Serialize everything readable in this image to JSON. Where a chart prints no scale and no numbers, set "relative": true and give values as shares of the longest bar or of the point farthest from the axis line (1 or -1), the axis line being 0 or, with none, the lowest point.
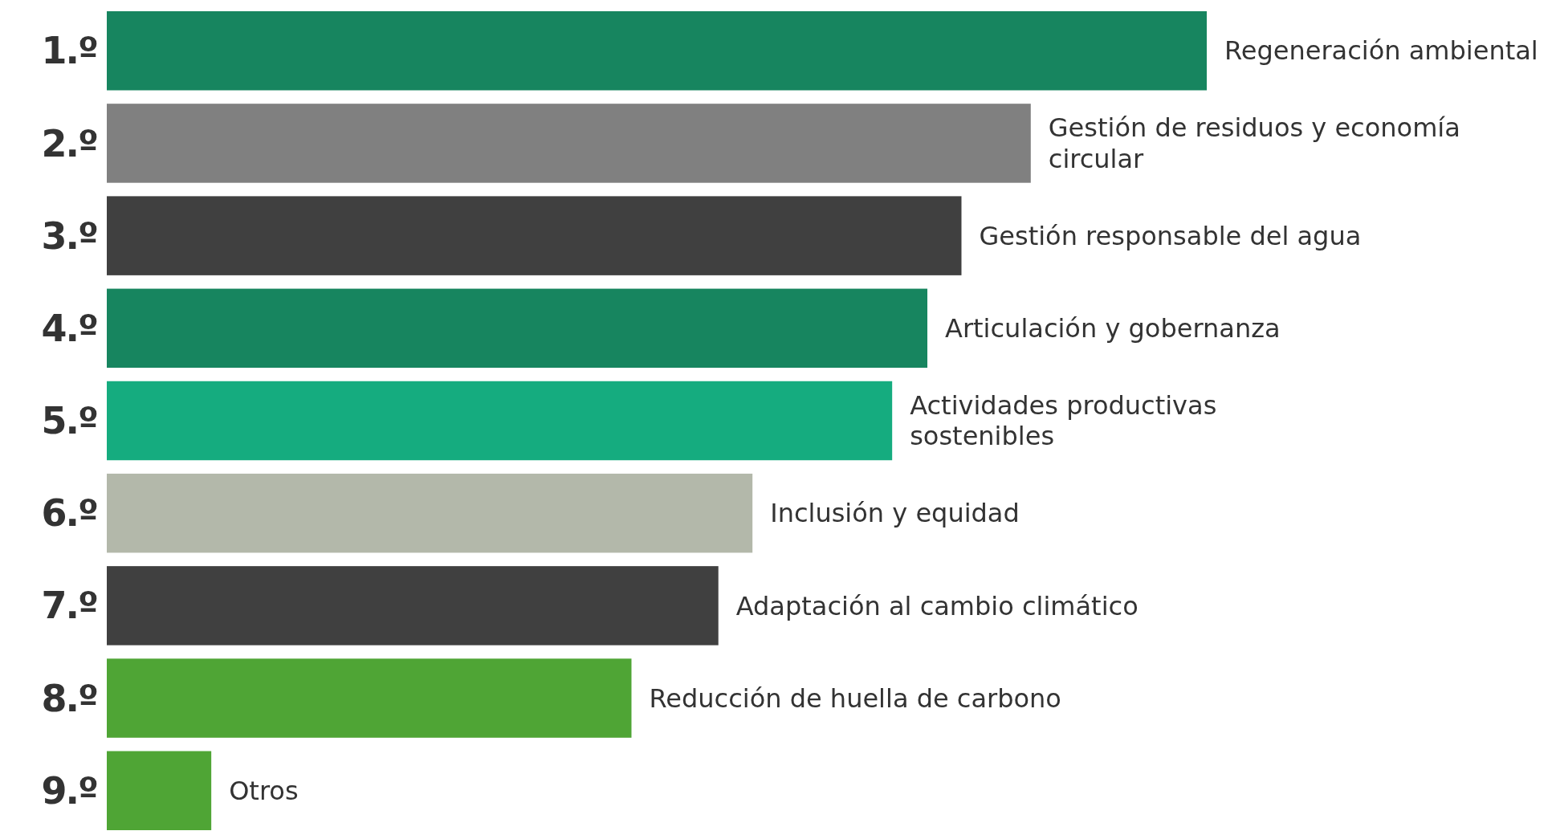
{
  "chart_data": {
    "type": "bar",
    "orientation": "horizontal",
    "relative": true,
    "categories": [
      "1.º",
      "2.º",
      "3.º",
      "4.º",
      "5.º",
      "6.º",
      "7.º",
      "8.º",
      "9.º"
    ],
    "values": [
      1,
      0.84,
      0.777,
      0.746,
      0.714,
      0.587,
      0.556,
      0.477,
      0.095
    ],
    "colors": [
      "#17855f",
      "#808080",
      "#404040",
      "#17855f",
      "#15ac7f",
      "#b3b8aa",
      "#404040",
      "#4fa535",
      "#4fa535"
    ],
    "annotations": [
      {
        "text": "Regeneración ambiental",
        "x": 1,
        "y": "1.º"
      },
      {
        "text": "Gestión de residuos y economía\ncircular",
        "x": 0.84,
        "y": "2.º"
      },
      {
        "text": "Gestión responsable del agua",
        "x": 0.777,
        "y": "3.º"
      },
      {
        "text": "Articulación y gobernanza",
        "x": 0.746,
        "y": "4.º"
      },
      {
        "text": "Actividades productivas\nsostenibles",
        "x": 0.714,
        "y": "5.º"
      },
      {
        "text": "Inclusión y equidad",
        "x": 0.587,
        "y": "6.º"
      },
      {
        "text": "Adaptación al cambio climático",
        "x": 0.556,
        "y": "7.º"
      },
      {
        "text": "Reducción de huella de carbono",
        "x": 0.477,
        "y": "8.º"
      },
      {
        "text": "Otros",
        "x": 0.095,
        "y": "9.º"
      }
    ]
  }
}
